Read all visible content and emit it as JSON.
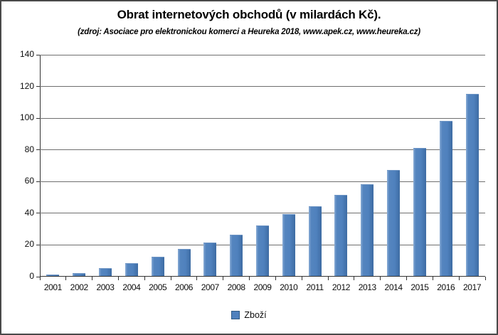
{
  "chart": {
    "legend": {
      "label": "Zboží"
    }
  },
  "chart_data": {
    "type": "bar",
    "title": "Obrat internetových obchodů  (v milardách Kč).",
    "subtitle": "(zdroj: Asociace pro elektronickou komerci  a Heureka 2018, www.apek.cz, www.heureka.cz)",
    "categories": [
      "2001",
      "2002",
      "2003",
      "2004",
      "2005",
      "2006",
      "2007",
      "2008",
      "2009",
      "2010",
      "2011",
      "2012",
      "2013",
      "2014",
      "2015",
      "2016",
      "2017"
    ],
    "series": [
      {
        "name": "Zboží",
        "values": [
          1,
          2,
          5,
          8,
          12,
          17,
          21,
          26,
          32,
          39,
          44,
          51,
          58,
          67,
          81,
          98,
          115
        ]
      }
    ],
    "xlabel": "",
    "ylabel": "",
    "ylim": [
      0,
      140
    ],
    "ytick_interval": 20,
    "ytick_labels": [
      "0",
      "20",
      "40",
      "60",
      "80",
      "100",
      "120",
      "140"
    ],
    "grid": "horizontal",
    "legend_position": "bottom",
    "bar_color": "#4F81BD",
    "bar_border_color": "#385D8A",
    "gridline_color": "#6F6F6F",
    "axis_color": "#333333"
  }
}
